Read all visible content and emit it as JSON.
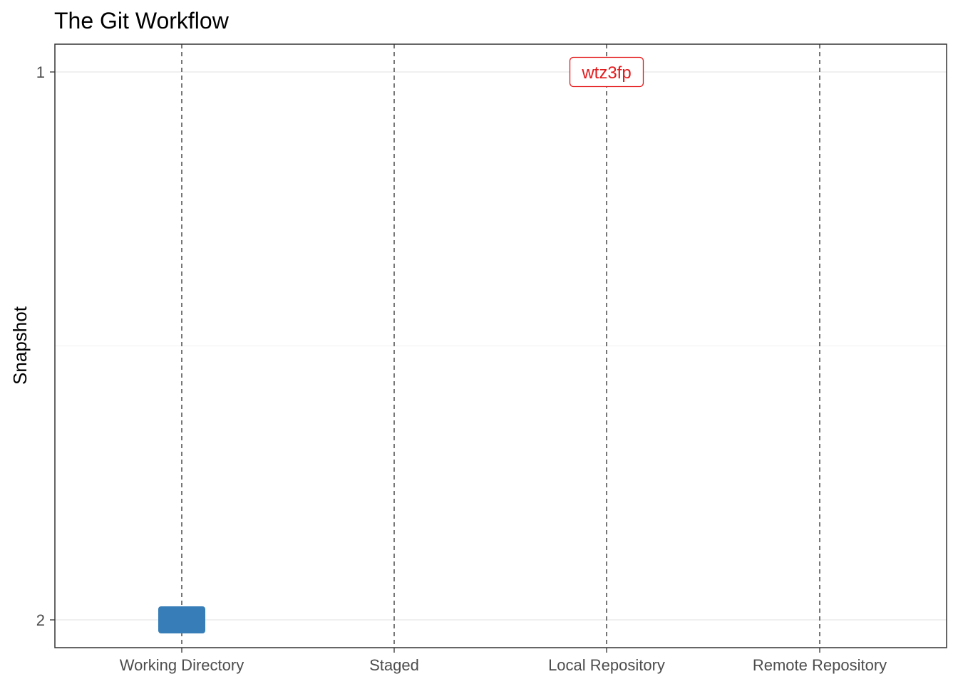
{
  "chart_data": {
    "type": "scatter",
    "title": "The Git Workflow",
    "xlabel": "",
    "ylabel": "Snapshot",
    "categories": [
      "Working Directory",
      "Staged",
      "Local Repository",
      "Remote Repository"
    ],
    "y_ticks": [
      1,
      2
    ],
    "ylim": [
      1,
      2
    ],
    "y_reversed": true,
    "grid": true,
    "legend": "none",
    "points": [
      {
        "x": "Local Repository",
        "y": 1,
        "label": "wtz3fp",
        "shape": "label",
        "color": "#e41a1c"
      },
      {
        "x": "Working Directory",
        "y": 2,
        "label": "",
        "shape": "box",
        "color": "#377eb8"
      }
    ],
    "colors": {
      "panel_border": "#333333",
      "gridline": "#ebebeb",
      "category_line": "#555555",
      "label_red": "#e41a1c",
      "box_blue": "#377eb8"
    }
  }
}
